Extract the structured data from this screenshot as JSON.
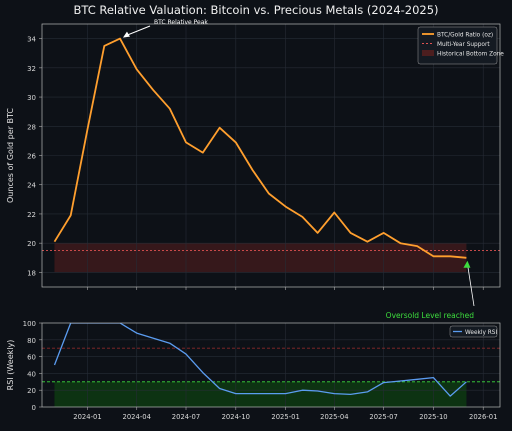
{
  "title": "BTC Relative Valuation: Bitcoin vs. Precious Metals (2024-2025)",
  "chart_data": [
    {
      "type": "line",
      "ylabel": "Ounces of Gold per BTC",
      "ylim": [
        17,
        35
      ],
      "yticks": [
        18,
        20,
        22,
        24,
        26,
        28,
        30,
        32,
        34
      ],
      "grid": true,
      "legend_position": "top-right",
      "x": [
        "2023-11-01",
        "2023-12-01",
        "2024-01-01",
        "2024-02-01",
        "2024-03-01",
        "2024-04-01",
        "2024-05-01",
        "2024-06-01",
        "2024-07-01",
        "2024-08-01",
        "2024-09-01",
        "2024-10-01",
        "2024-11-01",
        "2024-12-01",
        "2025-01-01",
        "2025-02-01",
        "2025-03-01",
        "2025-04-01",
        "2025-05-01",
        "2025-06-01",
        "2025-07-01",
        "2025-08-01",
        "2025-09-01",
        "2025-10-01",
        "2025-11-01",
        "2025-12-01",
        "2026-01-01"
      ],
      "series": [
        {
          "name": "BTC/Gold Ratio (oz)",
          "color": "#ff9f2e",
          "values": [
            20.1,
            21.9,
            27.8,
            33.5,
            34.0,
            31.9,
            30.5,
            29.2,
            26.9,
            26.2,
            27.9,
            26.9,
            25.0,
            23.4,
            22.5,
            21.8,
            20.7,
            22.1,
            20.7,
            20.1,
            20.7,
            20.0,
            19.8,
            19.1,
            19.1,
            19.0,
            null
          ]
        }
      ],
      "reference_lines": [
        {
          "name": "Multi-Year Support",
          "y": 19.5,
          "color": "#e05252",
          "style": "dotted"
        }
      ],
      "bands": [
        {
          "name": "Historical Bottom Zone",
          "y_range": [
            18,
            20
          ],
          "color": "#5a1f1f"
        }
      ],
      "annotations": [
        {
          "text": "BTC Relative Peak",
          "at": {
            "x": "2024-03-01",
            "y": 34.0
          },
          "color": "#ffffff"
        },
        {
          "text": "Oversold Level reached",
          "at": {
            "x": "2025-12-01",
            "y": 19.0
          },
          "color": "#3ddc3d"
        }
      ]
    },
    {
      "type": "line",
      "ylabel": "RSI (Weekly)",
      "ylim": [
        0,
        100
      ],
      "yticks": [
        0,
        20,
        40,
        60,
        80,
        100
      ],
      "grid": true,
      "legend_position": "top-right",
      "x": [
        "2023-11-01",
        "2023-12-01",
        "2024-01-01",
        "2024-02-01",
        "2024-03-01",
        "2024-04-01",
        "2024-05-01",
        "2024-06-01",
        "2024-07-01",
        "2024-08-01",
        "2024-09-01",
        "2024-10-01",
        "2024-11-01",
        "2024-12-01",
        "2025-01-01",
        "2025-02-01",
        "2025-03-01",
        "2025-04-01",
        "2025-05-01",
        "2025-06-01",
        "2025-07-01",
        "2025-08-01",
        "2025-09-01",
        "2025-10-01",
        "2025-11-01",
        "2025-12-01",
        "2026-01-01"
      ],
      "series": [
        {
          "name": "Weekly RSI",
          "color": "#5b9cf0",
          "values": [
            50,
            100,
            100,
            100,
            100,
            88,
            82,
            76,
            63,
            41,
            22,
            16,
            16,
            16,
            16,
            20,
            19,
            16,
            15,
            18,
            29,
            31,
            33,
            35,
            13,
            30,
            null
          ]
        }
      ],
      "reference_lines": [
        {
          "name": "overbought",
          "y": 70,
          "color": "#8b2a2a",
          "style": "dashed"
        },
        {
          "name": "oversold",
          "y": 30,
          "color": "#3ddc3d",
          "style": "dashed"
        }
      ],
      "bands": [
        {
          "name": "oversold-zone",
          "y_range": [
            0,
            30
          ],
          "color": "#0e3a12"
        }
      ],
      "xtick_labels": [
        "2024-01",
        "2024-04",
        "2024-07",
        "2024-10",
        "2025-01",
        "2025-04",
        "2025-07",
        "2025-10",
        "2026-01"
      ],
      "xtick_dates": [
        "2024-01-01",
        "2024-04-01",
        "2024-07-01",
        "2024-10-01",
        "2025-01-01",
        "2025-04-01",
        "2025-07-01",
        "2025-10-01",
        "2026-01-01"
      ]
    }
  ]
}
